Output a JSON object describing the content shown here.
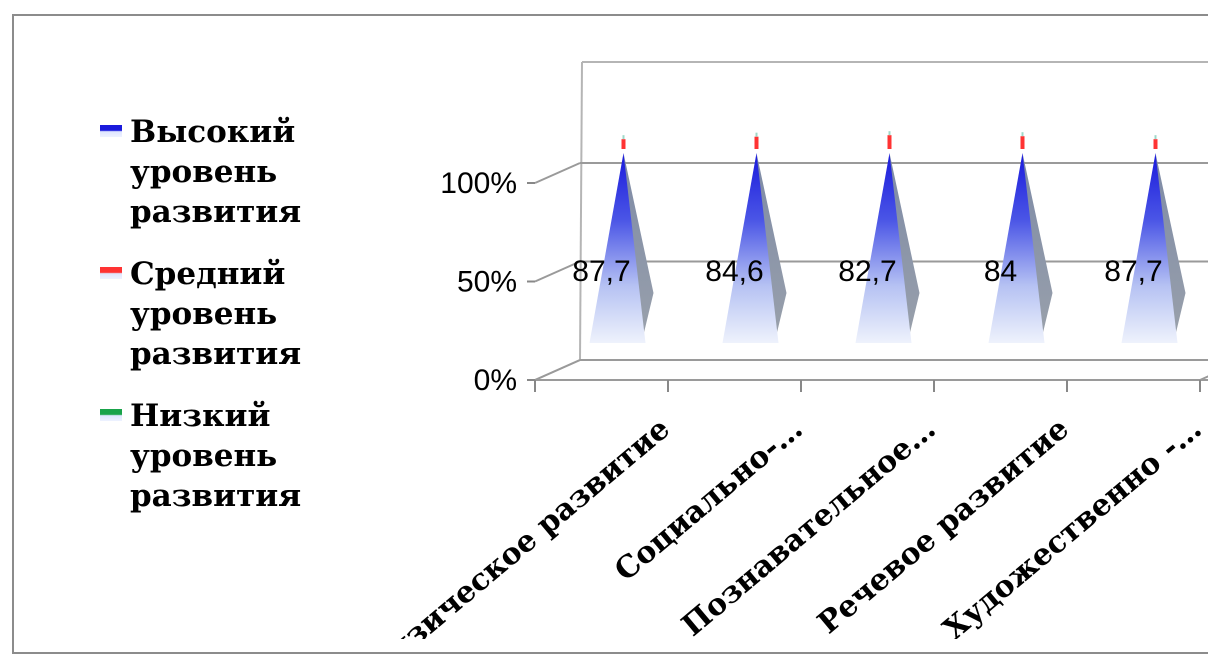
{
  "chart_data": {
    "type": "bar",
    "style": "3d-cone-100-stacked",
    "categories": [
      "Физическое развитие",
      "Социально-…",
      "Познавательное…",
      "Речевое развитие",
      "Художественно -…"
    ],
    "series": [
      {
        "name": "Высокий уровень развития",
        "color": "#1a1adc",
        "values": [
          87.7,
          84.6,
          82.7,
          84,
          87.7
        ]
      },
      {
        "name": "Средний уровень развития",
        "color": "#ff3333",
        "values": [
          12.3,
          15.4,
          17.3,
          16,
          12.3
        ]
      },
      {
        "name": "Низкий уровень развития",
        "color": "#19a34a",
        "values": [
          0,
          0,
          0,
          0,
          0
        ]
      }
    ],
    "data_labels": [
      "87,7",
      "84,6",
      "82,7",
      "84",
      "87,7"
    ],
    "y_ticks": [
      "0%",
      "50%",
      "100%"
    ],
    "ylim": [
      0,
      100
    ],
    "grid": true,
    "legend_position": "left"
  }
}
